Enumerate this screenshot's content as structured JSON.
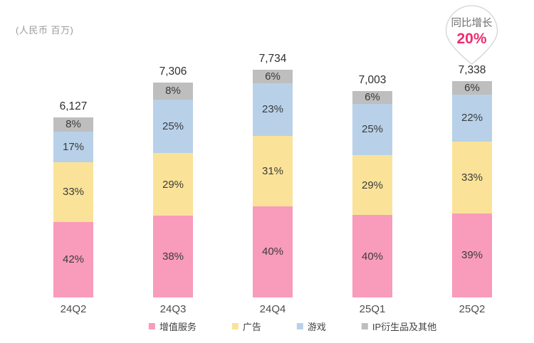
{
  "unit_label": "(人民币 百万)",
  "annotation": {
    "label": "同比增长",
    "value": "20%",
    "value_color": "#f02d6e"
  },
  "legend": [
    {
      "key": "value-added-services",
      "label": "增值服务",
      "color": "#f99bba"
    },
    {
      "key": "advertising",
      "label": "广告",
      "color": "#fae398"
    },
    {
      "key": "games",
      "label": "游戏",
      "color": "#b8d1e9"
    },
    {
      "key": "ip-derivatives-and-others",
      "label": "IP衍生品及其他",
      "color": "#bebebe"
    }
  ],
  "chart_data": {
    "type": "bar",
    "stacked": true,
    "grid": false,
    "legend_position": "bottom",
    "ylabel": "(人民币 百万)",
    "categories": [
      "24Q2",
      "24Q3",
      "24Q4",
      "25Q1",
      "25Q2"
    ],
    "totals": [
      6127,
      7306,
      7734,
      7003,
      7338
    ],
    "total_labels": [
      "6,127",
      "7,306",
      "7,734",
      "7,003",
      "7,338"
    ],
    "series": [
      {
        "key": "value-added-services",
        "name": "增值服务",
        "color": "#f99bba",
        "values_pct": [
          42,
          38,
          40,
          40,
          39
        ]
      },
      {
        "key": "advertising",
        "name": "广告",
        "color": "#fae398",
        "values_pct": [
          33,
          29,
          31,
          29,
          33
        ]
      },
      {
        "key": "games",
        "name": "游戏",
        "color": "#b8d1e9",
        "values_pct": [
          17,
          25,
          23,
          25,
          22
        ]
      },
      {
        "key": "ip-derivatives-and-others",
        "name": "IP衍生品及其他",
        "color": "#bebebe",
        "values_pct": [
          8,
          8,
          6,
          6,
          6
        ]
      }
    ],
    "annotation": {
      "label": "同比增长",
      "value": "20%"
    }
  }
}
